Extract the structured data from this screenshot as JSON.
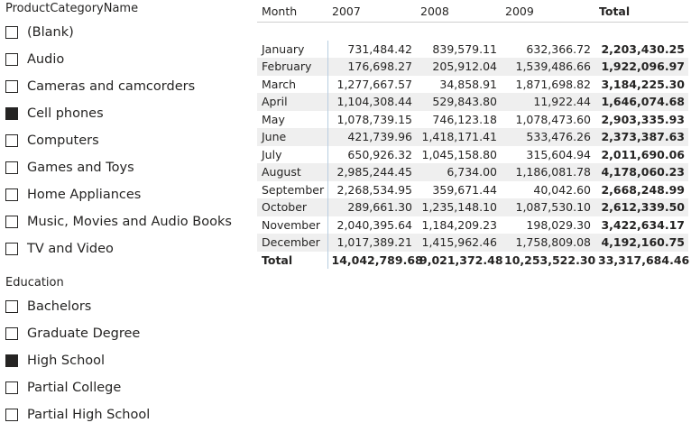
{
  "slicer_category": {
    "title": "ProductCategoryName",
    "items": [
      {
        "label": "(Blank)",
        "checked": false
      },
      {
        "label": "Audio",
        "checked": false
      },
      {
        "label": "Cameras and camcorders",
        "checked": false
      },
      {
        "label": "Cell phones",
        "checked": true
      },
      {
        "label": "Computers",
        "checked": false
      },
      {
        "label": "Games and Toys",
        "checked": false
      },
      {
        "label": "Home Appliances",
        "checked": false
      },
      {
        "label": "Music, Movies and Audio Books",
        "checked": false
      },
      {
        "label": "TV and Video",
        "checked": false
      }
    ]
  },
  "slicer_education": {
    "title": "Education",
    "items": [
      {
        "label": "Bachelors",
        "checked": false
      },
      {
        "label": "Graduate Degree",
        "checked": false
      },
      {
        "label": "High School",
        "checked": true
      },
      {
        "label": "Partial College",
        "checked": false
      },
      {
        "label": "Partial High School",
        "checked": false
      }
    ]
  },
  "matrix": {
    "headers": [
      "Month",
      "2007",
      "2008",
      "2009",
      "Total"
    ],
    "rows": [
      [
        "January",
        "731,484.42",
        "839,579.11",
        "632,366.72",
        "2,203,430.25"
      ],
      [
        "February",
        "176,698.27",
        "205,912.04",
        "1,539,486.66",
        "1,922,096.97"
      ],
      [
        "March",
        "1,277,667.57",
        "34,858.91",
        "1,871,698.82",
        "3,184,225.30"
      ],
      [
        "April",
        "1,104,308.44",
        "529,843.80",
        "11,922.44",
        "1,646,074.68"
      ],
      [
        "May",
        "1,078,739.15",
        "746,123.18",
        "1,078,473.60",
        "2,903,335.93"
      ],
      [
        "June",
        "421,739.96",
        "1,418,171.41",
        "533,476.26",
        "2,373,387.63"
      ],
      [
        "July",
        "650,926.32",
        "1,045,158.80",
        "315,604.94",
        "2,011,690.06"
      ],
      [
        "August",
        "2,985,244.45",
        "6,734.00",
        "1,186,081.78",
        "4,178,060.23"
      ],
      [
        "September",
        "2,268,534.95",
        "359,671.44",
        "40,042.60",
        "2,668,248.99"
      ],
      [
        "October",
        "289,661.30",
        "1,235,148.10",
        "1,087,530.10",
        "2,612,339.50"
      ],
      [
        "November",
        "2,040,395.64",
        "1,184,209.23",
        "198,029.30",
        "3,422,634.17"
      ],
      [
        "December",
        "1,017,389.21",
        "1,415,962.46",
        "1,758,809.08",
        "4,192,160.75"
      ]
    ],
    "total_row": [
      "Total",
      "14,042,789.68",
      "9,021,372.48",
      "10,253,522.30",
      "33,317,684.46"
    ]
  }
}
